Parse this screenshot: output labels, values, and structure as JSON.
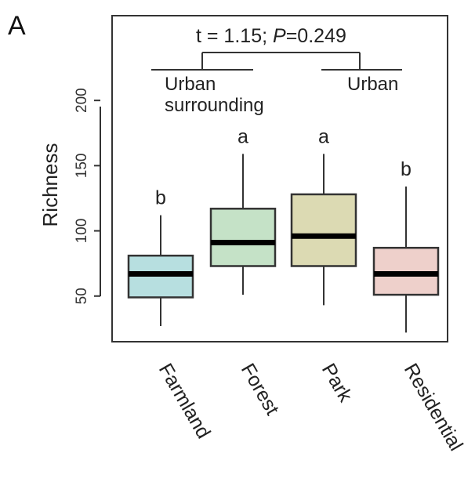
{
  "chart_data": {
    "type": "boxplot",
    "panel_label": "A",
    "ylabel": "Richness",
    "xlabel": "",
    "ylim": [
      15,
      265
    ],
    "y_ticks": [
      50,
      100,
      150,
      200
    ],
    "categories": [
      "Farmland",
      "Forest",
      "Park",
      "Residential"
    ],
    "boxes": [
      {
        "category": "Farmland",
        "whisker_low": 27,
        "q1": 49,
        "median": 67,
        "q3": 81,
        "whisker_high": 112,
        "letter": "b",
        "color": "#b7dfe0"
      },
      {
        "category": "Forest",
        "whisker_low": 51,
        "q1": 73,
        "median": 91,
        "q3": 117,
        "whisker_high": 159,
        "letter": "a",
        "color": "#c5e2c7"
      },
      {
        "category": "Park",
        "whisker_low": 43,
        "q1": 73,
        "median": 96,
        "q3": 128,
        "whisker_high": 159,
        "letter": "a",
        "color": "#dcdab3"
      },
      {
        "category": "Residential",
        "whisker_low": 22,
        "q1": 51,
        "median": 67,
        "q3": 87,
        "whisker_high": 134,
        "letter": "b",
        "color": "#eed0cb"
      }
    ],
    "comparison": {
      "text_prefix": "t = 1.15; ",
      "p_symbol": "P",
      "p_value": "=0.249",
      "groups": [
        {
          "label_lines": [
            "Urban",
            "surrounding"
          ],
          "categories": [
            "Farmland",
            "Forest"
          ]
        },
        {
          "label_lines": [
            "Urban"
          ],
          "categories": [
            "Park",
            "Residential"
          ]
        }
      ]
    }
  }
}
